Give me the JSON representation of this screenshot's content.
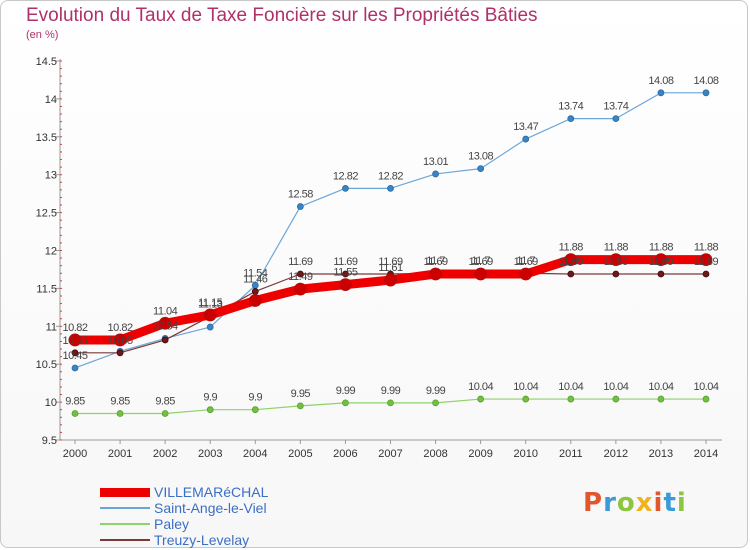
{
  "header": {
    "title": "Evolution du Taux de Taxe Foncière sur les Propriétés Bâties",
    "subtitle": "(en %)"
  },
  "logo": {
    "text": "Proxiti",
    "colors": [
      "#e2562c",
      "#3a9bd8",
      "#8cc63f",
      "#f2b21b",
      "#e2562c",
      "#3a9bd8",
      "#8cc63f"
    ]
  },
  "chart_data": {
    "type": "line",
    "title": "Evolution du Taux de Taxe Foncière sur les Propriétés Bâties",
    "ylabel": "(en %)",
    "x": [
      "2000",
      "2001",
      "2002",
      "2003",
      "2004",
      "2005",
      "2006",
      "2007",
      "2008",
      "2009",
      "2010",
      "2011",
      "2012",
      "2013",
      "2014"
    ],
    "ylim": [
      9.5,
      14.5
    ],
    "yticks": [
      "9.5",
      "10",
      "10.5",
      "11",
      "11.5",
      "12",
      "12.5",
      "13",
      "13.5",
      "14",
      "14.5"
    ],
    "grid": false,
    "legend_position": "bottom-left",
    "series": [
      {
        "name": "VILLEMARéCHAL",
        "color": "#ee0000",
        "values": [
          10.82,
          10.82,
          11.04,
          11.15,
          11.34,
          11.49,
          11.55,
          11.61,
          11.69,
          11.69,
          11.69,
          11.88,
          11.88,
          11.88,
          11.88
        ],
        "labels": [
          "10.82",
          "10.82",
          "11.04",
          "11.15",
          "",
          "11.49",
          "11.55",
          "11.61",
          "11.69",
          "11.69",
          "11.69",
          "11.88",
          "11.88",
          "11.88",
          "11.88"
        ]
      },
      {
        "name": "Saint-Ange-le-Viel",
        "color": "#6ba6d9",
        "values": [
          10.45,
          10.67,
          10.84,
          10.99,
          11.54,
          12.58,
          12.82,
          12.82,
          13.01,
          13.08,
          13.47,
          13.74,
          13.74,
          14.08,
          14.08
        ],
        "labels": [
          "10.45",
          "",
          "10.84",
          "",
          "11.54",
          "12.58",
          "12.82",
          "12.82",
          "13.01",
          "13.08",
          "13.47",
          "13.74",
          "13.74",
          "14.08",
          "14.08"
        ]
      },
      {
        "name": "Paley",
        "color": "#8fd16a",
        "values": [
          9.85,
          9.85,
          9.85,
          9.9,
          9.9,
          9.95,
          9.99,
          9.99,
          9.99,
          10.04,
          10.04,
          10.04,
          10.04,
          10.04,
          10.04
        ],
        "labels": [
          "9.85",
          "9.85",
          "9.85",
          "9.9",
          "9.9",
          "9.95",
          "9.99",
          "9.99",
          "9.99",
          "10.04",
          "10.04",
          "10.04",
          "10.04",
          "10.04",
          "10.04"
        ]
      },
      {
        "name": "Treuzy-Levelay",
        "color": "#7a3a3a",
        "values": [
          10.65,
          10.65,
          10.82,
          11.13,
          11.46,
          11.69,
          11.69,
          11.69,
          11.7,
          11.7,
          11.7,
          11.69,
          11.69,
          11.69,
          11.69
        ],
        "labels": [
          "10.65",
          "10.65",
          "",
          "11.13",
          "11.46",
          "11.69",
          "11.69",
          "11.69",
          "11.7",
          "11.7",
          "11.7",
          "11.69",
          "11.69",
          "11.69",
          "11.69"
        ]
      }
    ]
  }
}
